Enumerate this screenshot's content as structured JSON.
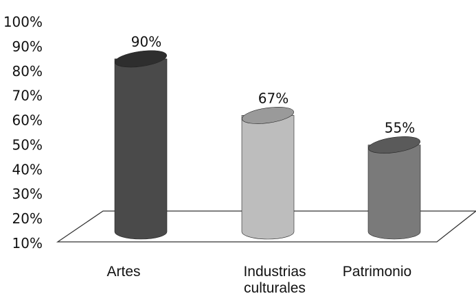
{
  "chart_data": {
    "type": "bar",
    "style": "3d-cylinder",
    "categories": [
      "Artes",
      "Industrias culturales",
      "Patrimonio"
    ],
    "category_lines": [
      [
        "Artes"
      ],
      [
        "Industrias",
        "culturales"
      ],
      [
        "Patrimonio"
      ]
    ],
    "values": [
      90,
      67,
      55
    ],
    "data_labels": [
      "90%",
      "67%",
      "55%"
    ],
    "ylim": [
      10,
      100
    ],
    "yticks": [
      10,
      20,
      30,
      40,
      50,
      60,
      70,
      80,
      90,
      100
    ],
    "ytick_labels": [
      "10%",
      "20%",
      "30%",
      "40%",
      "50%",
      "60%",
      "70%",
      "80%",
      "90%",
      "100%"
    ],
    "grid": false,
    "legend": "none",
    "colors": {
      "bars": [
        "#4a4a4a",
        "#bdbdbd",
        "#7a7a7a"
      ],
      "bar_tops": [
        "#2e2e2e",
        "#9a9a9a",
        "#5a5a5a"
      ],
      "floor": "#333333",
      "text": "#111111"
    }
  }
}
